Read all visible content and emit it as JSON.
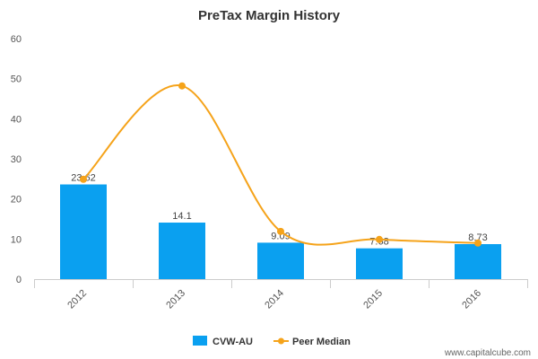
{
  "chart_data": {
    "type": "bar",
    "title": "PreTax Margin History",
    "categories": [
      "2012",
      "2013",
      "2014",
      "2015",
      "2016"
    ],
    "ylim": [
      0,
      60
    ],
    "yticks": [
      0,
      10,
      20,
      30,
      40,
      50,
      60
    ],
    "grid": false,
    "legend_position": "bottom",
    "series": [
      {
        "name": "CVW-AU",
        "kind": "bar",
        "color": "#0AA0F0",
        "values": [
          23.62,
          14.1,
          9.09,
          7.68,
          8.73
        ],
        "value_labels": [
          "23.62",
          "14.1",
          "9.09",
          "7.68",
          "8.73"
        ]
      },
      {
        "name": "Peer Median",
        "kind": "line",
        "color": "#F5A31A",
        "values": [
          24.9,
          48.2,
          11.9,
          9.9,
          9.0
        ]
      }
    ]
  },
  "credit": "www.capitalcube.com"
}
